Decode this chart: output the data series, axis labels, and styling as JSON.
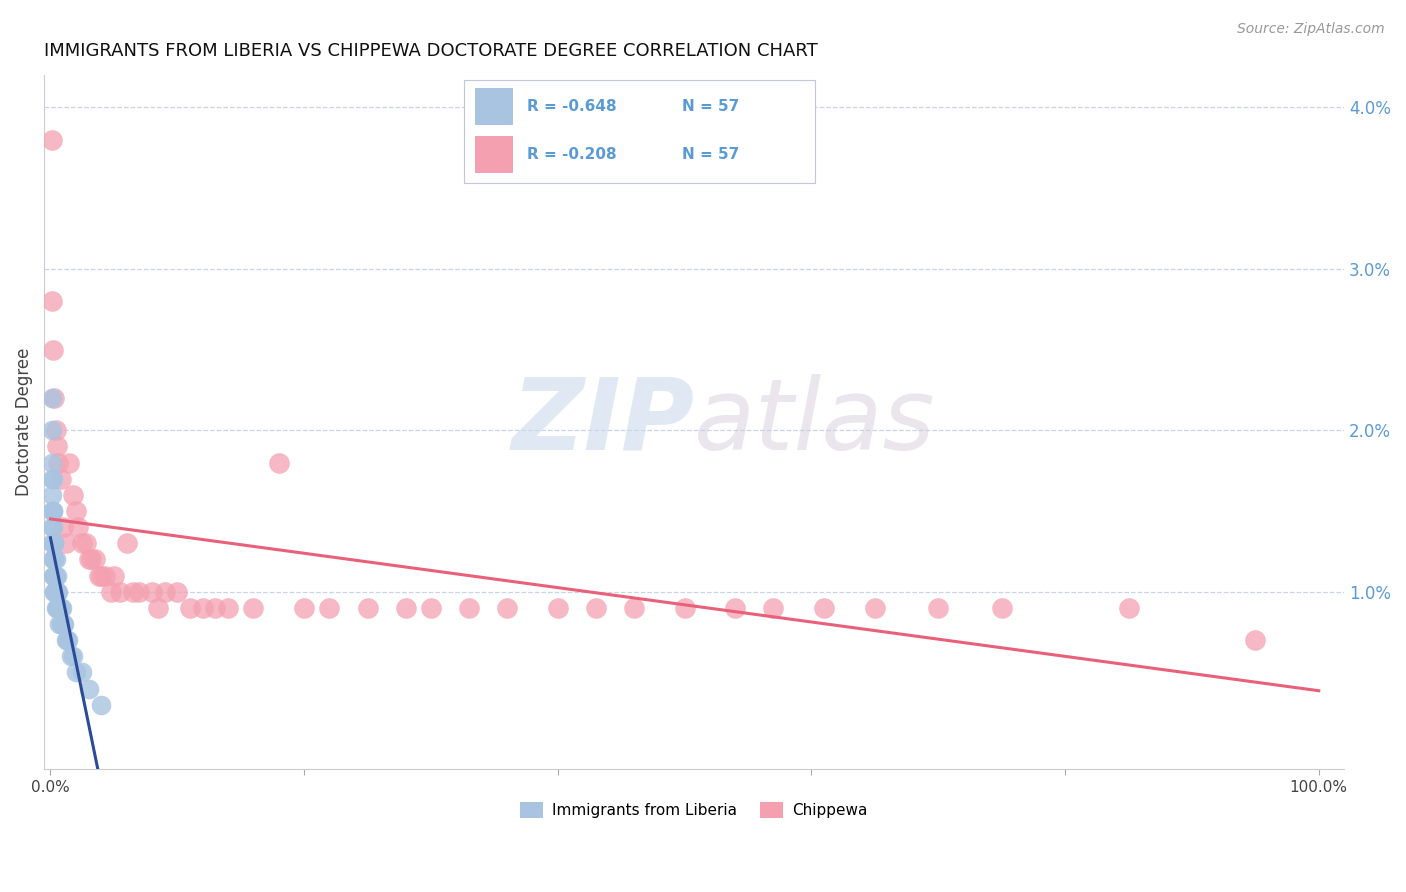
{
  "title": "IMMIGRANTS FROM LIBERIA VS CHIPPEWA DOCTORATE DEGREE CORRELATION CHART",
  "source": "Source: ZipAtlas.com",
  "ylabel": "Doctorate Degree",
  "right_ytick_vals": [
    0.01,
    0.02,
    0.03,
    0.04
  ],
  "right_ytick_labels": [
    "1.0%",
    "2.0%",
    "3.0%",
    "4.0%"
  ],
  "legend_r1": "R = -0.648",
  "legend_r2": "R = -0.208",
  "legend_n": "N = 57",
  "legend_label1": "Immigrants from Liberia",
  "legend_label2": "Chippewa",
  "color_blue": "#a8c4e0",
  "color_pink": "#f4a0b0",
  "line_blue": "#2a4a9a",
  "line_pink": "#e8607a",
  "watermark_zip": "ZIP",
  "watermark_atlas": "atlas",
  "background": "#ffffff",
  "grid_color": "#c8d4e8",
  "blue_x": [
    0.001,
    0.001,
    0.001,
    0.001,
    0.001,
    0.001,
    0.001,
    0.001,
    0.002,
    0.002,
    0.002,
    0.002,
    0.002,
    0.002,
    0.002,
    0.002,
    0.002,
    0.003,
    0.003,
    0.003,
    0.003,
    0.003,
    0.003,
    0.003,
    0.003,
    0.004,
    0.004,
    0.004,
    0.004,
    0.004,
    0.005,
    0.005,
    0.005,
    0.005,
    0.005,
    0.006,
    0.006,
    0.006,
    0.007,
    0.007,
    0.007,
    0.008,
    0.008,
    0.009,
    0.009,
    0.01,
    0.01,
    0.011,
    0.012,
    0.013,
    0.014,
    0.016,
    0.018,
    0.02,
    0.025,
    0.03,
    0.04
  ],
  "blue_y": [
    0.022,
    0.02,
    0.018,
    0.017,
    0.016,
    0.015,
    0.014,
    0.013,
    0.017,
    0.015,
    0.015,
    0.014,
    0.013,
    0.013,
    0.012,
    0.012,
    0.011,
    0.013,
    0.013,
    0.012,
    0.012,
    0.011,
    0.011,
    0.01,
    0.01,
    0.012,
    0.011,
    0.01,
    0.01,
    0.009,
    0.011,
    0.01,
    0.01,
    0.009,
    0.009,
    0.01,
    0.009,
    0.009,
    0.009,
    0.009,
    0.008,
    0.009,
    0.008,
    0.009,
    0.008,
    0.008,
    0.008,
    0.008,
    0.007,
    0.007,
    0.007,
    0.006,
    0.006,
    0.005,
    0.005,
    0.004,
    0.003
  ],
  "pink_x": [
    0.001,
    0.001,
    0.002,
    0.003,
    0.004,
    0.005,
    0.006,
    0.008,
    0.01,
    0.012,
    0.015,
    0.018,
    0.02,
    0.022,
    0.025,
    0.028,
    0.03,
    0.032,
    0.035,
    0.038,
    0.04,
    0.043,
    0.048,
    0.05,
    0.055,
    0.06,
    0.065,
    0.07,
    0.08,
    0.085,
    0.09,
    0.1,
    0.11,
    0.12,
    0.13,
    0.14,
    0.16,
    0.18,
    0.2,
    0.22,
    0.25,
    0.28,
    0.3,
    0.33,
    0.36,
    0.4,
    0.43,
    0.46,
    0.5,
    0.54,
    0.57,
    0.61,
    0.65,
    0.7,
    0.75,
    0.85,
    0.95
  ],
  "pink_y": [
    0.038,
    0.028,
    0.025,
    0.022,
    0.02,
    0.019,
    0.018,
    0.017,
    0.014,
    0.013,
    0.018,
    0.016,
    0.015,
    0.014,
    0.013,
    0.013,
    0.012,
    0.012,
    0.012,
    0.011,
    0.011,
    0.011,
    0.01,
    0.011,
    0.01,
    0.013,
    0.01,
    0.01,
    0.01,
    0.009,
    0.01,
    0.01,
    0.009,
    0.009,
    0.009,
    0.009,
    0.009,
    0.018,
    0.009,
    0.009,
    0.009,
    0.009,
    0.009,
    0.009,
    0.009,
    0.009,
    0.009,
    0.009,
    0.009,
    0.009,
    0.009,
    0.009,
    0.009,
    0.009,
    0.009,
    0.009,
    0.007
  ],
  "xlim_min": 0.0,
  "xlim_max": 1.0,
  "ylim_min": 0.0,
  "ylim_max": 0.042
}
